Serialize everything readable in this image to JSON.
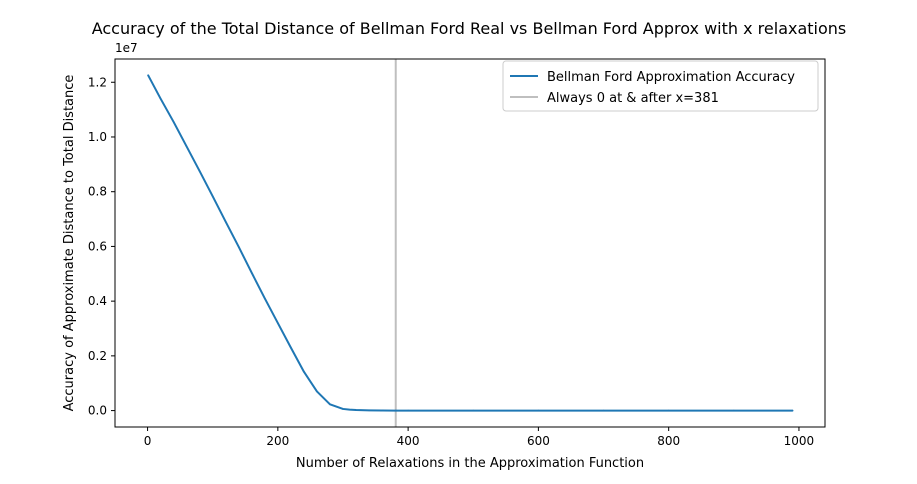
{
  "chart_data": {
    "type": "line",
    "title": "Accuracy of the Total Distance of Bellman Ford Real vs Bellman Ford Approx with x relaxations",
    "xlabel": "Number of Relaxations in the Approximation Function",
    "ylabel": "Accuracy of Approximate Distance to Total Distance",
    "y_offset_label": "1e7",
    "xlim": [
      -50,
      1040
    ],
    "ylim": [
      -0.06,
      1.285
    ],
    "x_ticks": [
      0,
      200,
      400,
      600,
      800,
      1000
    ],
    "x_tick_labels": [
      "0",
      "200",
      "400",
      "600",
      "800",
      "1000"
    ],
    "y_ticks": [
      0.0,
      0.2,
      0.4,
      0.6,
      0.8,
      1.0,
      1.2
    ],
    "y_tick_labels": [
      "0.0",
      "0.2",
      "0.4",
      "0.6",
      "0.8",
      "1.0",
      "1.2"
    ],
    "grid": false,
    "legend_position": "top-right",
    "series": [
      {
        "name": "Bellman Ford Approximation Accuracy",
        "color": "#1f77b4",
        "x": [
          1,
          20,
          40,
          60,
          80,
          100,
          120,
          140,
          160,
          180,
          200,
          220,
          240,
          260,
          280,
          300,
          310,
          320,
          340,
          360,
          381,
          400,
          500,
          600,
          700,
          800,
          900,
          990
        ],
        "y": [
          1.225,
          1.14,
          1.055,
          0.965,
          0.875,
          0.783,
          0.69,
          0.598,
          0.503,
          0.41,
          0.32,
          0.23,
          0.142,
          0.07,
          0.023,
          0.006,
          0.0035,
          0.002,
          0.0008,
          0.0002,
          0,
          0,
          0,
          0,
          0,
          0,
          0,
          0
        ]
      }
    ],
    "vlines": [
      {
        "name": "Always 0 at & after x=381",
        "x": 381,
        "color": "#bfbfbf"
      }
    ]
  }
}
